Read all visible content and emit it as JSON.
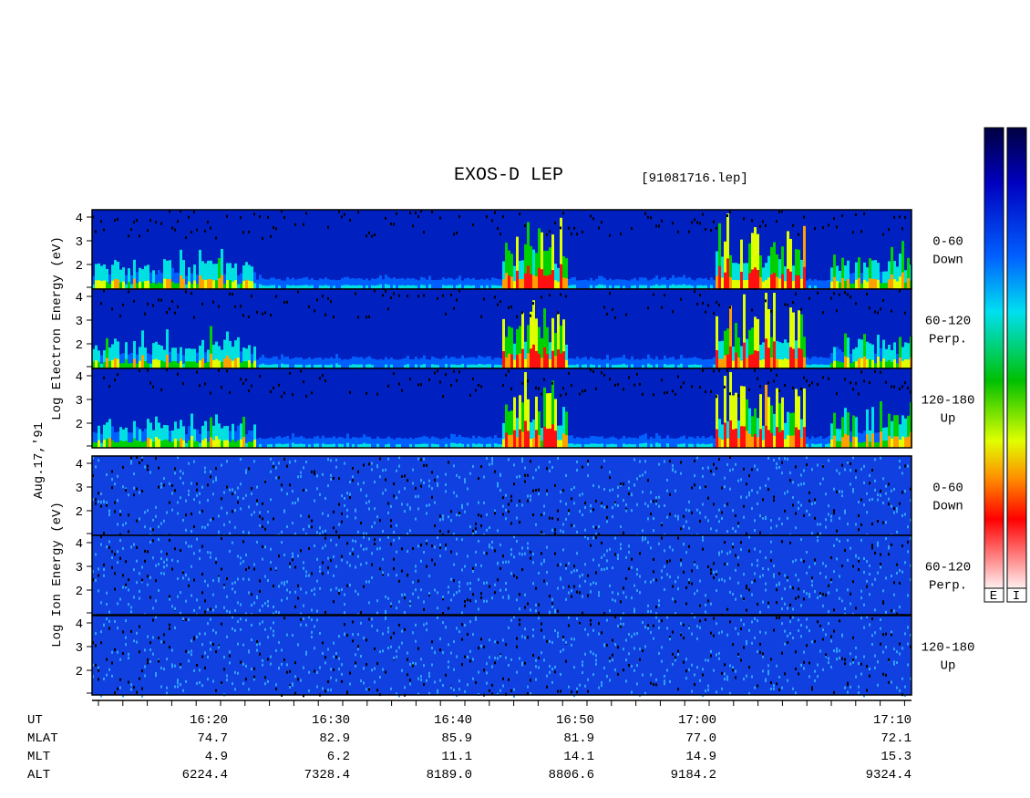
{
  "header": {
    "title": "EXOS-D LEP",
    "file": "[91081716.lep]"
  },
  "date": "Aug.17,'91",
  "axis_labels": {
    "electron": "Log  Electron  Energy (eV)",
    "ion": "Log  Ion  Energy (eV)"
  },
  "panels": [
    {
      "range": "0-60",
      "direction": "Down"
    },
    {
      "range": "60-120",
      "direction": "Perp."
    },
    {
      "range": "120-180",
      "direction": "Up"
    },
    {
      "range": "0-60",
      "direction": "Down"
    },
    {
      "range": "60-120",
      "direction": "Perp."
    },
    {
      "range": "120-180",
      "direction": "Up"
    }
  ],
  "yticks": [
    "4",
    "3",
    "2"
  ],
  "ephemeris": [
    {
      "name": "UT",
      "values": [
        "16:20",
        "16:30",
        "16:40",
        "16:50",
        "17:00",
        "17:10"
      ]
    },
    {
      "name": "MLAT",
      "values": [
        "74.7",
        "82.9",
        "85.9",
        "81.9",
        "77.0",
        "72.1"
      ]
    },
    {
      "name": "MLT",
      "values": [
        "4.9",
        "6.2",
        "11.1",
        "14.1",
        "14.9",
        "15.3"
      ]
    },
    {
      "name": "ALT",
      "values": [
        "6224.4",
        "7328.4",
        "8189.0",
        "8806.6",
        "9184.2",
        "9324.4"
      ]
    }
  ],
  "colorbar_labels": [
    "E",
    "I"
  ]
}
